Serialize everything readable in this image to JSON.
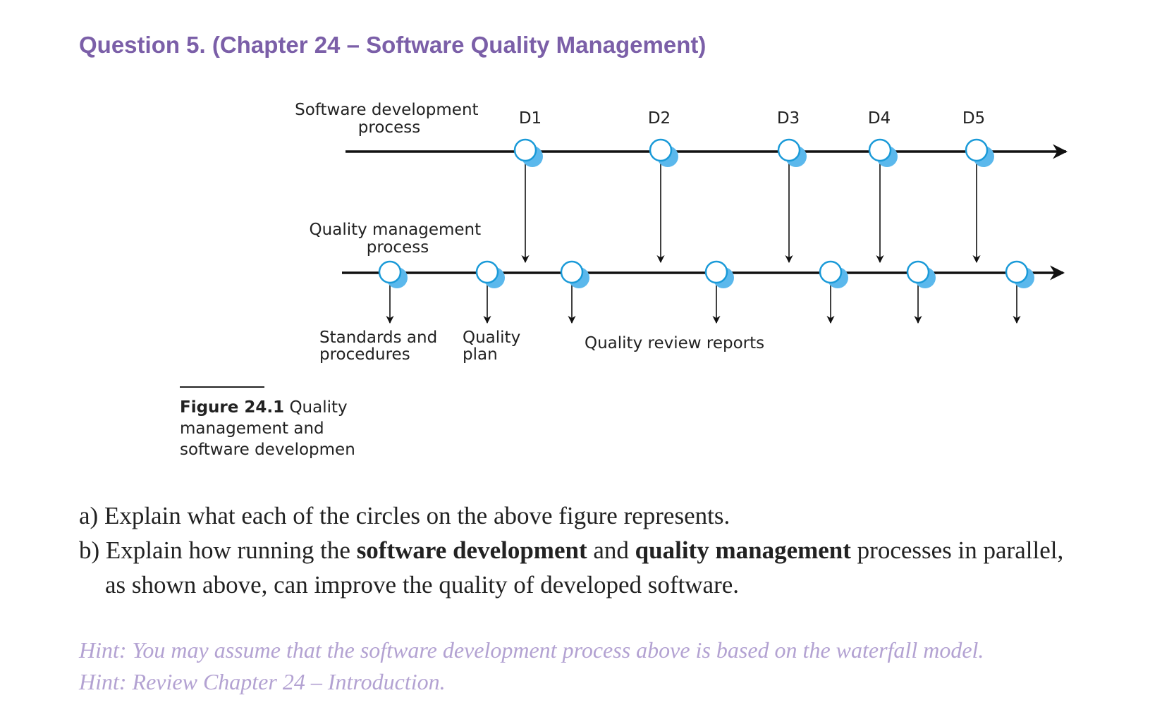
{
  "heading": "Question 5. (Chapter 24 – Software Quality Management)",
  "figure": {
    "dev_label": [
      "Software development",
      "process"
    ],
    "qm_label": [
      "Quality management",
      "process"
    ],
    "deliverables": [
      "D1",
      "D2",
      "D3",
      "D4",
      "D5"
    ],
    "standards_label": [
      "Standards and",
      "procedures"
    ],
    "plan_label": [
      "Quality",
      "plan"
    ],
    "reports_label": "Quality review reports",
    "caption_bold": "Figure 24.1",
    "caption_text": " Quality management and software developmen"
  },
  "questions": {
    "a": "a) Explain what each of the circles on the above figure represents.",
    "b_part1": "b) Explain how running the ",
    "b_bold1": "software development",
    "b_part2": " and ",
    "b_bold2": "quality management",
    "b_part3": " processes in parallel,",
    "b_cont": "as shown above, can improve the quality of developed software."
  },
  "hints": [
    "Hint: You may assume that the software development process above is based on the waterfall model.",
    "Hint: Review Chapter 24 – Introduction."
  ],
  "colors": {
    "heading": "#7b5fa8",
    "hint": "#b3a2d2",
    "circle_stroke": "#1a9ad8",
    "circle_shadow": "#5bb8ec"
  }
}
